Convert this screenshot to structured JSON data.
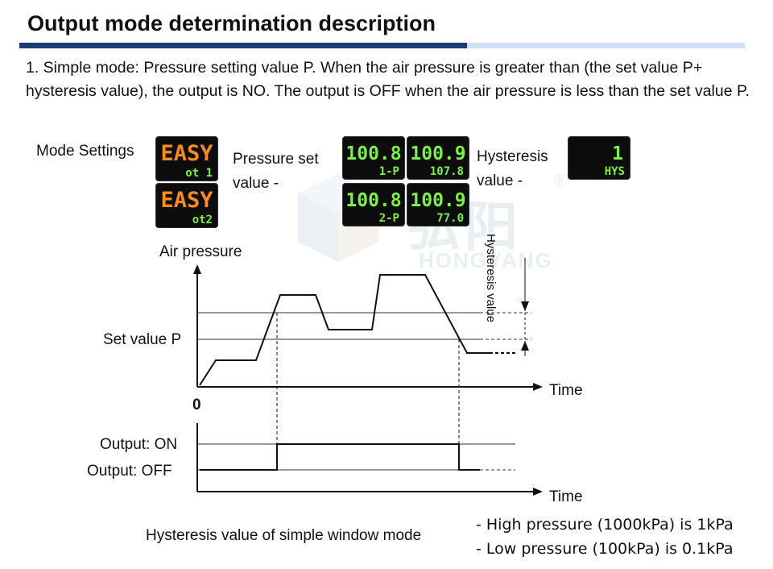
{
  "title": "Output mode determination description",
  "intro": "1. Simple mode: Pressure setting value P. When the air pressure is greater than (the set value P+ hysteresis value), the output is NO. The output is OFF when the air pressure is less than the set value P.",
  "settings": {
    "mode_label": "Mode Settings",
    "pressure_label": "Pressure set value -",
    "hysteresis_label": "Hysteresis value -"
  },
  "displays": {
    "mode_ot1": {
      "main": "EASY",
      "sub": "ot 1"
    },
    "mode_ot2": {
      "main": "EASY",
      "sub": "ot2"
    },
    "p1_set": {
      "main": "100.8",
      "sub": "1-P"
    },
    "p1_cur": {
      "main": "100.9",
      "sub": "107.8"
    },
    "p2_set": {
      "main": "100.8",
      "sub": "2-P"
    },
    "p2_cur": {
      "main": "100.9",
      "sub": "77.0"
    },
    "hys": {
      "main": "1",
      "sub": "HYS"
    }
  },
  "colors": {
    "orange_digit": "#ff8a1e",
    "green_digit": "#7bf04a",
    "title_bar": "#1e3a75",
    "title_bar_light": "#cfe0f6"
  },
  "watermark": {
    "text_cn": "弘阳",
    "text_en": "HONGYANG",
    "mark": "®"
  },
  "diagram": {
    "y_axis_label": "Air pressure",
    "set_value_label": "Set value P",
    "origin_label": "0",
    "time_label_top": "Time",
    "time_label_bottom": "Time",
    "hysteresis_label": "Hysteresis value",
    "output_on_label": "Output: ON",
    "output_off_label": "Output: OFF"
  },
  "caption": "Hysteresis value of simple window mode",
  "notes": [
    "- High pressure (1000kPa) is 1kPa",
    "- Low pressure (100kPa) is 0.1kPa"
  ]
}
